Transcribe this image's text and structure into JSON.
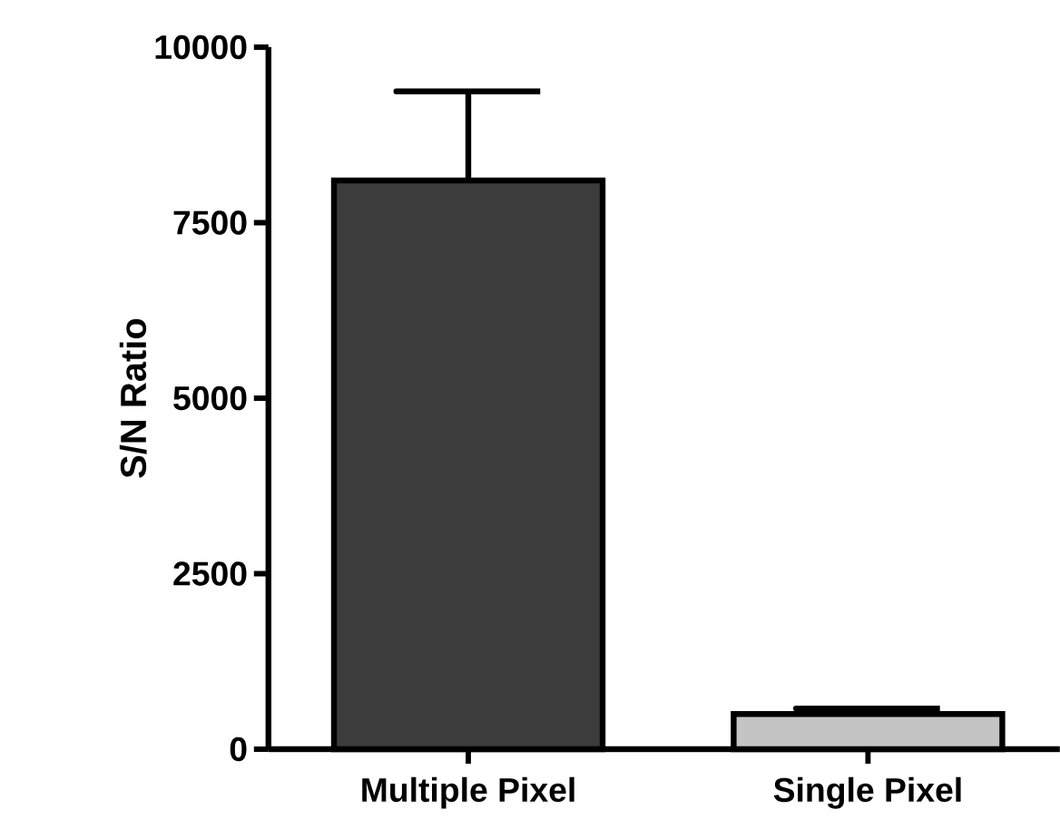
{
  "chart_data": {
    "type": "bar",
    "ylabel": "S/N Ratio",
    "categories": [
      "Multiple Pixel",
      "Single Pixel"
    ],
    "values": [
      8100,
      500
    ],
    "colors": [
      "#3c3c3c",
      "#c4c4c4"
    ],
    "errors": [
      [
        8100,
        9370
      ],
      [
        500,
        580
      ]
    ],
    "ylim": [
      0,
      10000
    ],
    "yticks": [
      0,
      2500,
      5000,
      7500,
      10000
    ],
    "grid": false
  }
}
